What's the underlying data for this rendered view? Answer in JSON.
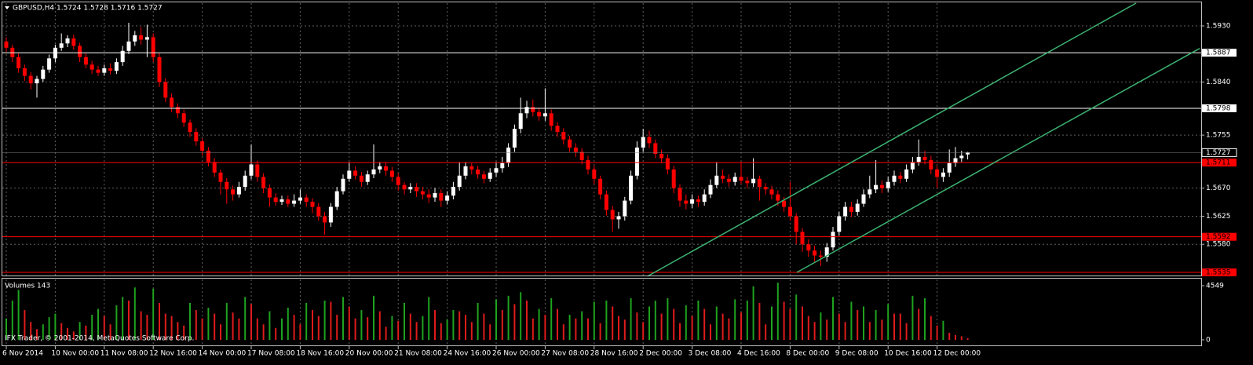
{
  "chart_data": {
    "type": "candlestick",
    "title": "GBPUSD,H4  1.5724 1.5728 1.5716 1.5727",
    "copyright": "IFX Trader, © 2001-2014, MetaQuotes Software Corp.",
    "bull_color": "#ffffff",
    "bear_color": "#ff0000",
    "grid": true,
    "categories": [
      "6 Nov 2014",
      null,
      null,
      null,
      null,
      null,
      null,
      null,
      "10 Nov 00:00",
      null,
      null,
      null,
      null,
      null,
      null,
      null,
      "11 Nov 08:00",
      null,
      null,
      null,
      null,
      null,
      null,
      null,
      "12 Nov 16:00",
      null,
      null,
      null,
      null,
      null,
      null,
      null,
      "14 Nov 00:00",
      null,
      null,
      null,
      null,
      null,
      null,
      null,
      "17 Nov 08:00",
      null,
      null,
      null,
      null,
      null,
      null,
      null,
      "18 Nov 16:00",
      null,
      null,
      null,
      null,
      null,
      null,
      null,
      "20 Nov 00:00",
      null,
      null,
      null,
      null,
      null,
      null,
      null,
      "21 Nov 08:00",
      null,
      null,
      null,
      null,
      null,
      null,
      null,
      "24 Nov 16:00",
      null,
      null,
      null,
      null,
      null,
      null,
      null,
      "26 Nov 00:00",
      null,
      null,
      null,
      null,
      null,
      null,
      null,
      "27 Nov 08:00",
      null,
      null,
      null,
      null,
      null,
      null,
      null,
      "28 Nov 16:00",
      null,
      null,
      null,
      null,
      null,
      null,
      null,
      "2 Dec 00:00",
      null,
      null,
      null,
      null,
      null,
      null,
      null,
      "3 Dec 08:00",
      null,
      null,
      null,
      null,
      null,
      null,
      null,
      "4 Dec 16:00",
      null,
      null,
      null,
      null,
      null,
      null,
      null,
      "8 Dec 00:00",
      null,
      null,
      null,
      null,
      null,
      null,
      null,
      "9 Dec 08:00",
      null,
      null,
      null,
      null,
      null,
      null,
      null,
      "10 Dec 16:00",
      null,
      null,
      null,
      null,
      null,
      null,
      null,
      "12 Dec 00:00",
      null,
      null,
      null,
      null,
      null
    ],
    "open": [
      1.5905,
      1.5895,
      1.588,
      1.5862,
      1.585,
      1.5838,
      1.5845,
      1.586,
      1.5878,
      1.5895,
      1.5902,
      1.591,
      1.5898,
      1.588,
      1.5868,
      1.586,
      1.5855,
      1.5862,
      1.5858,
      1.5872,
      1.589,
      1.5905,
      1.5915,
      1.5908,
      1.5912,
      1.588,
      1.584,
      1.5815,
      1.58,
      1.579,
      1.5775,
      1.576,
      1.5745,
      1.573,
      1.5712,
      1.5695,
      1.568,
      1.5668,
      1.566,
      1.5672,
      1.569,
      1.5708,
      1.5688,
      1.567,
      1.5655,
      1.5648,
      1.5652,
      1.5645,
      1.565,
      1.5655,
      1.5648,
      1.564,
      1.5625,
      1.5615,
      1.564,
      1.5665,
      1.5685,
      1.5698,
      1.569,
      1.568,
      1.5692,
      1.57,
      1.5705,
      1.5698,
      1.5688,
      1.5675,
      1.5668,
      1.5672,
      1.5665,
      1.566,
      1.5655,
      1.5662,
      1.565,
      1.5658,
      1.5672,
      1.569,
      1.5705,
      1.57,
      1.5692,
      1.5685,
      1.5695,
      1.5702,
      1.571,
      1.5735,
      1.5765,
      1.579,
      1.58,
      1.5792,
      1.5785,
      1.579,
      1.577,
      1.576,
      1.5748,
      1.5735,
      1.5728,
      1.5715,
      1.57,
      1.5685,
      1.566,
      1.5635,
      1.562,
      1.5625,
      1.565,
      1.569,
      1.5735,
      1.5752,
      1.5742,
      1.5725,
      1.5718,
      1.57,
      1.567,
      1.565,
      1.5645,
      1.5652,
      1.5648,
      1.566,
      1.5675,
      1.569,
      1.5685,
      1.568,
      1.5688,
      1.5682,
      1.5678,
      1.5685,
      1.5672,
      1.5668,
      1.566,
      1.565,
      1.564,
      1.5625,
      1.56,
      1.558,
      1.557,
      1.5562,
      1.556,
      1.5575,
      1.56,
      1.5625,
      1.564,
      1.5632,
      1.5645,
      1.566,
      1.5668,
      1.5675,
      1.567,
      1.568,
      1.569,
      1.5685,
      1.57,
      1.5712,
      1.572,
      1.5715,
      1.57,
      1.5688,
      1.5695,
      1.571,
      1.5718,
      1.5724
    ],
    "high": [
      1.5912,
      1.59,
      1.5886,
      1.5868,
      1.5856,
      1.585,
      1.5866,
      1.5884,
      1.59,
      1.5918,
      1.5915,
      1.5916,
      1.5903,
      1.5886,
      1.5874,
      1.5866,
      1.5868,
      1.587,
      1.5878,
      1.5898,
      1.5935,
      1.5922,
      1.5928,
      1.5932,
      1.5918,
      1.5886,
      1.5846,
      1.5822,
      1.5806,
      1.5796,
      1.578,
      1.5766,
      1.575,
      1.5736,
      1.5718,
      1.57,
      1.5686,
      1.5674,
      1.568,
      1.5698,
      1.574,
      1.5714,
      1.5694,
      1.5676,
      1.5662,
      1.5658,
      1.5658,
      1.566,
      1.5668,
      1.566,
      1.5654,
      1.5646,
      1.5632,
      1.5646,
      1.5672,
      1.5692,
      1.5712,
      1.5705,
      1.5696,
      1.5698,
      1.574,
      1.5712,
      1.5712,
      1.5704,
      1.5694,
      1.568,
      1.5678,
      1.5678,
      1.5672,
      1.5668,
      1.567,
      1.5668,
      1.5665,
      1.568,
      1.5712,
      1.5712,
      1.571,
      1.5706,
      1.5698,
      1.5702,
      1.5712,
      1.572,
      1.5742,
      1.5772,
      1.5815,
      1.581,
      1.5812,
      1.5798,
      1.583,
      1.5796,
      1.5776,
      1.5766,
      1.5754,
      1.5742,
      1.5734,
      1.5722,
      1.5706,
      1.569,
      1.5666,
      1.5642,
      1.5632,
      1.5656,
      1.5698,
      1.5745,
      1.5765,
      1.5762,
      1.5748,
      1.5732,
      1.5724,
      1.5706,
      1.5676,
      1.566,
      1.566,
      1.5658,
      1.5668,
      1.5684,
      1.5712,
      1.57,
      1.5692,
      1.5695,
      1.5712,
      1.5688,
      1.5718,
      1.569,
      1.5678,
      1.5674,
      1.5666,
      1.5656,
      1.568,
      1.563,
      1.5606,
      1.5588,
      1.5578,
      1.557,
      1.5582,
      1.5608,
      1.5632,
      1.5648,
      1.5648,
      1.5652,
      1.5668,
      1.569,
      1.5715,
      1.5682,
      1.5688,
      1.5698,
      1.5696,
      1.5708,
      1.572,
      1.5748,
      1.573,
      1.5722,
      1.5706,
      1.5702,
      1.5732,
      1.5736,
      1.573,
      1.5728
    ],
    "low": [
      1.5888,
      1.5872,
      1.5855,
      1.5842,
      1.5828,
      1.5815,
      1.584,
      1.5855,
      1.5872,
      1.589,
      1.5896,
      1.5892,
      1.5872,
      1.5862,
      1.5853,
      1.585,
      1.585,
      1.5852,
      1.5853,
      1.5866,
      1.5885,
      1.5898,
      1.59,
      1.588,
      1.5872,
      1.5832,
      1.5808,
      1.5792,
      1.5782,
      1.5768,
      1.5752,
      1.5738,
      1.5722,
      1.5705,
      1.5688,
      1.566,
      1.5645,
      1.565,
      1.5655,
      1.5666,
      1.5684,
      1.568,
      1.5662,
      1.564,
      1.5642,
      1.5643,
      1.564,
      1.564,
      1.5645,
      1.564,
      1.563,
      1.5618,
      1.5595,
      1.5608,
      1.5635,
      1.566,
      1.568,
      1.5684,
      1.5672,
      1.5675,
      1.5686,
      1.5694,
      1.569,
      1.568,
      1.5666,
      1.566,
      1.5662,
      1.5656,
      1.5652,
      1.5646,
      1.5648,
      1.564,
      1.5644,
      1.5652,
      1.5666,
      1.5684,
      1.5692,
      1.5685,
      1.5678,
      1.568,
      1.5688,
      1.5695,
      1.5704,
      1.5728,
      1.5758,
      1.5782,
      1.5785,
      1.5778,
      1.5778,
      1.5762,
      1.5752,
      1.574,
      1.5728,
      1.572,
      1.5708,
      1.5692,
      1.5676,
      1.5652,
      1.5626,
      1.56,
      1.5605,
      1.5618,
      1.5644,
      1.5684,
      1.5728,
      1.5734,
      1.5718,
      1.571,
      1.5692,
      1.5662,
      1.564,
      1.5636,
      1.5638,
      1.564,
      1.5642,
      1.5654,
      1.567,
      1.5678,
      1.5672,
      1.5674,
      1.5676,
      1.567,
      1.5672,
      1.565,
      1.566,
      1.5652,
      1.5642,
      1.5632,
      1.5618,
      1.558,
      1.5568,
      1.556,
      1.5552,
      1.5545,
      1.5552,
      1.557,
      1.5594,
      1.5618,
      1.5624,
      1.5626,
      1.564,
      1.5654,
      1.5662,
      1.5662,
      1.5664,
      1.5674,
      1.5678,
      1.568,
      1.5694,
      1.5706,
      1.5708,
      1.5692,
      1.567,
      1.568,
      1.5688,
      1.5704,
      1.5712,
      1.5716
    ],
    "close": [
      1.5895,
      1.588,
      1.5862,
      1.585,
      1.5838,
      1.5845,
      1.586,
      1.5878,
      1.5895,
      1.5902,
      1.591,
      1.5898,
      1.588,
      1.5868,
      1.586,
      1.5855,
      1.5862,
      1.5858,
      1.5872,
      1.589,
      1.5905,
      1.5915,
      1.5908,
      1.5912,
      1.588,
      1.584,
      1.5815,
      1.58,
      1.579,
      1.5775,
      1.576,
      1.5745,
      1.573,
      1.5712,
      1.5695,
      1.568,
      1.5668,
      1.566,
      1.5672,
      1.569,
      1.5708,
      1.5688,
      1.567,
      1.5655,
      1.5648,
      1.5652,
      1.5645,
      1.565,
      1.5655,
      1.5648,
      1.564,
      1.5625,
      1.5615,
      1.564,
      1.5665,
      1.5685,
      1.5698,
      1.569,
      1.568,
      1.5692,
      1.57,
      1.5705,
      1.5698,
      1.5688,
      1.5675,
      1.5668,
      1.5672,
      1.5665,
      1.566,
      1.5655,
      1.5662,
      1.565,
      1.5658,
      1.5672,
      1.569,
      1.5705,
      1.57,
      1.5692,
      1.5685,
      1.5695,
      1.5702,
      1.571,
      1.5735,
      1.5765,
      1.579,
      1.58,
      1.5792,
      1.5785,
      1.579,
      1.577,
      1.576,
      1.5748,
      1.5735,
      1.5728,
      1.5715,
      1.57,
      1.5685,
      1.566,
      1.5635,
      1.562,
      1.5625,
      1.565,
      1.569,
      1.5735,
      1.5752,
      1.5742,
      1.5725,
      1.5718,
      1.57,
      1.567,
      1.565,
      1.5645,
      1.5652,
      1.5648,
      1.566,
      1.5675,
      1.569,
      1.5685,
      1.568,
      1.5688,
      1.5682,
      1.5678,
      1.5685,
      1.5672,
      1.5668,
      1.566,
      1.565,
      1.564,
      1.5625,
      1.56,
      1.558,
      1.557,
      1.5562,
      1.556,
      1.5575,
      1.56,
      1.5625,
      1.564,
      1.5632,
      1.5645,
      1.566,
      1.5668,
      1.5675,
      1.567,
      1.568,
      1.569,
      1.5685,
      1.57,
      1.5712,
      1.572,
      1.5715,
      1.57,
      1.5688,
      1.5695,
      1.571,
      1.5718,
      1.5722,
      1.5727
    ],
    "ylim": [
      1.55287,
      1.59665
    ],
    "yticks": [
      {
        "value": 1.593,
        "label": "1.5930"
      },
      {
        "value": 1.584,
        "label": "1.5840"
      },
      1.5755,
      {
        "value": 1.567,
        "label": "1.5670"
      },
      1.5625,
      {
        "value": 1.558,
        "label": "1.5580"
      }
    ],
    "hlines": [
      {
        "value": 1.5887,
        "color": "#ffffff"
      },
      {
        "value": 1.5798,
        "color": "#ffffff"
      },
      {
        "value": 1.5711,
        "color": "#ff0000"
      },
      {
        "value": 1.5592,
        "color": "#ff0000"
      },
      {
        "value": 1.5535,
        "color": "#ff0000"
      }
    ],
    "trendlines": [
      {
        "color": "#3cb371",
        "start": [
          104.7,
          1.55287
        ],
        "end": [
          184.5,
          1.59665
        ]
      },
      {
        "color": "#3cb371",
        "start": [
          129.1,
          1.5535
        ],
        "end": [
          194.9,
          1.5894
        ]
      }
    ],
    "volume": {
      "title": "Volumes 143",
      "up_color": "#1fa31f",
      "down_color": "#e01b1b",
      "ylim": [
        -530,
        5140
      ],
      "yticks": [
        4549,
        0
      ],
      "values": [
        1800,
        3300,
        4200,
        2500,
        1500,
        900,
        1300,
        1900,
        2200,
        1400,
        1000,
        700,
        1500,
        1200,
        2100,
        2600,
        2000,
        1300,
        2900,
        3600,
        3300,
        4400,
        2400,
        2100,
        4300,
        3100,
        2200,
        2000,
        1500,
        1200,
        3100,
        2500,
        1800,
        2700,
        2200,
        1300,
        3100,
        2300,
        1800,
        3600,
        3000,
        1800,
        1300,
        2400,
        1000,
        1800,
        2700,
        2100,
        1300,
        3100,
        2500,
        2000,
        3300,
        3200,
        2100,
        3600,
        2800,
        1800,
        2500,
        1900,
        3700,
        2400,
        1100,
        2000,
        1600,
        3100,
        2200,
        1500,
        2000,
        3600,
        2500,
        1400,
        1700,
        2500,
        2400,
        2100,
        1500,
        3100,
        2200,
        1300,
        3400,
        2500,
        3700,
        3000,
        4000,
        3300,
        1800,
        2600,
        2100,
        3500,
        2600,
        1300,
        2100,
        1800,
        2400,
        1800,
        3200,
        1400,
        3300,
        2800,
        2000,
        1700,
        3500,
        2300,
        1500,
        2800,
        3300,
        2200,
        3500,
        2600,
        1400,
        2900,
        2000,
        3300,
        2600,
        1300,
        2800,
        2200,
        1800,
        3400,
        2300,
        3300,
        4500,
        3100,
        1300,
        2800,
        4800,
        3200,
        2600,
        3800,
        2800,
        2000,
        1500,
        2300,
        1700,
        3600,
        2200,
        1500,
        3200,
        2500,
        2800,
        1500,
        2500,
        1700,
        3000,
        2200,
        2200,
        1400,
        3700,
        2600,
        3500,
        2000,
        1200,
        1600,
        600,
        400,
        300,
        143
      ]
    }
  }
}
